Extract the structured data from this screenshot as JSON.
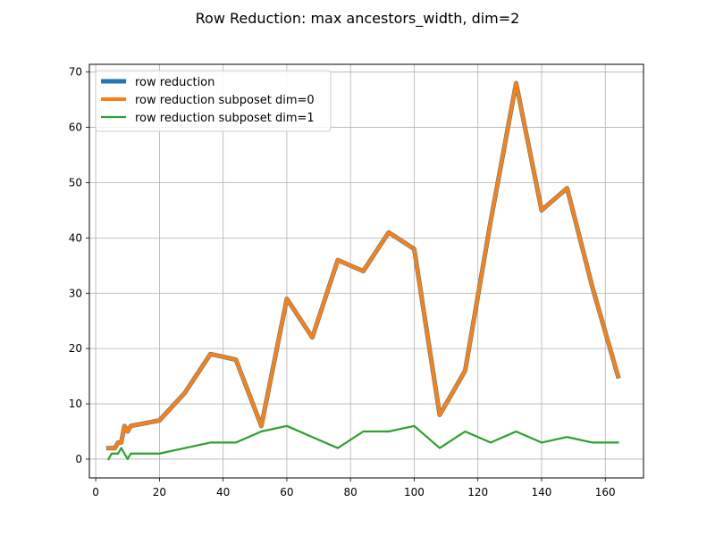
{
  "chart_data": {
    "type": "line",
    "title": "Row Reduction: max ancestors_width, dim=2",
    "xlabel": "",
    "ylabel": "",
    "xlim": [
      -2.0,
      172.0
    ],
    "ylim": [
      -3.4,
      71.4
    ],
    "xticks": [
      0,
      20,
      40,
      60,
      80,
      100,
      120,
      140,
      160
    ],
    "yticks": [
      0,
      10,
      20,
      30,
      40,
      50,
      60,
      70
    ],
    "grid": true,
    "legend_position": "top-left",
    "series": [
      {
        "name": "row reduction",
        "color": "#1f77b4",
        "x": [
          4,
          6,
          7,
          8,
          9,
          10,
          11,
          20,
          28,
          36,
          44,
          52,
          60,
          68,
          76,
          84,
          92,
          100,
          108,
          116,
          124,
          132,
          140,
          148,
          156,
          164
        ],
        "y": [
          2,
          2,
          3,
          3,
          6,
          5,
          6,
          7,
          12,
          19,
          18,
          6,
          29,
          22,
          36,
          34,
          41,
          38,
          8,
          16,
          43,
          68,
          45,
          49,
          31,
          15
        ]
      },
      {
        "name": "row reduction subposet dim=0",
        "color": "#ff7f0e",
        "x": [
          4,
          6,
          7,
          8,
          9,
          10,
          11,
          20,
          28,
          36,
          44,
          52,
          60,
          68,
          76,
          84,
          92,
          100,
          108,
          116,
          124,
          132,
          140,
          148,
          156,
          164
        ],
        "y": [
          2,
          2,
          3,
          3,
          6,
          5,
          6,
          7,
          12,
          19,
          18,
          6,
          29,
          22,
          36,
          34,
          41,
          38,
          8,
          16,
          43,
          68,
          45,
          49,
          31,
          15
        ]
      },
      {
        "name": "row reduction subposet dim=1",
        "color": "#2ca02c",
        "x": [
          4,
          5,
          7,
          8,
          9,
          10,
          11,
          20,
          28,
          36,
          44,
          52,
          60,
          68,
          76,
          84,
          92,
          100,
          108,
          116,
          124,
          132,
          140,
          148,
          156,
          164
        ],
        "y": [
          0,
          1,
          1,
          2,
          1,
          0,
          1,
          1,
          2,
          3,
          3,
          5,
          6,
          4,
          2,
          5,
          5,
          6,
          2,
          5,
          3,
          5,
          3,
          4,
          3,
          3
        ]
      }
    ]
  }
}
